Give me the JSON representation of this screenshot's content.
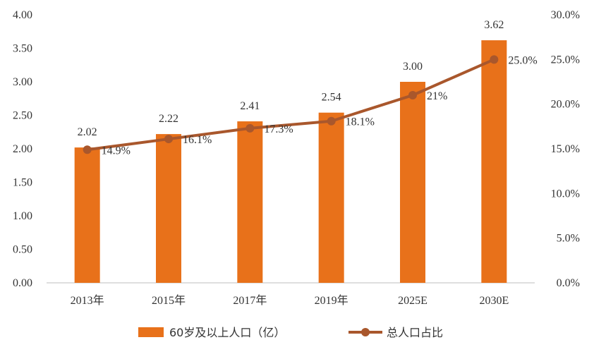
{
  "chart_data": {
    "type": "bar",
    "categories": [
      "2013年",
      "2015年",
      "2017年",
      "2019年",
      "2025E",
      "2030E"
    ],
    "series": [
      {
        "name": "60岁及以上人口（亿）",
        "type": "bar",
        "axis": "left",
        "color": "#E8711A",
        "values": [
          2.02,
          2.22,
          2.41,
          2.54,
          3.0,
          3.62
        ],
        "labels": [
          "2.02",
          "2.22",
          "2.41",
          "2.54",
          "3.00",
          "3.62"
        ]
      },
      {
        "name": "总人口占比",
        "type": "line",
        "axis": "right",
        "color": "#A9572C",
        "values": [
          14.9,
          16.1,
          17.3,
          18.1,
          21,
          25.0
        ],
        "labels": [
          "14.9%",
          "16.1%",
          "17.3%",
          "18.1%",
          "21%",
          "25.0%"
        ]
      }
    ],
    "y_left": {
      "range": [
        0,
        4
      ],
      "ticks": [
        "0.00",
        "0.50",
        "1.00",
        "1.50",
        "2.00",
        "2.50",
        "3.00",
        "3.50",
        "4.00"
      ]
    },
    "y_right": {
      "range": [
        0,
        30
      ],
      "ticks": [
        "0.0%",
        "5.0%",
        "10.0%",
        "15.0%",
        "20.0%",
        "25.0%",
        "30.0%"
      ]
    },
    "grid": false,
    "legend_position": "bottom"
  }
}
